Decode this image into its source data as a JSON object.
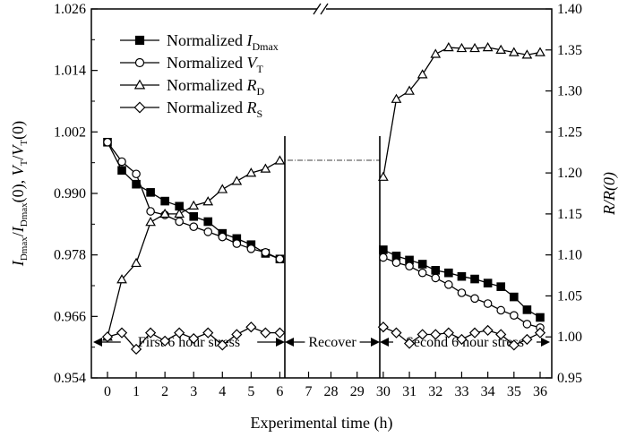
{
  "chart_data": {
    "type": "line",
    "x_label": "Experimental time (h)",
    "x_tick_labels": [
      "0",
      "1",
      "2",
      "3",
      "4",
      "5",
      "6",
      "7",
      "28",
      "29",
      "30",
      "31",
      "32",
      "33",
      "34",
      "35",
      "36"
    ],
    "y_left": {
      "ticks": [
        "0.954",
        "0.966",
        "0.978",
        "0.990",
        "1.002",
        "1.014",
        "1.026"
      ],
      "range": [
        0.954,
        1.026
      ]
    },
    "y_right": {
      "label": "R/R(0)",
      "ticks": [
        "0.95",
        "1.00",
        "1.05",
        "1.10",
        "1.15",
        "1.20",
        "1.25",
        "1.30",
        "1.35",
        "1.40"
      ],
      "range": [
        0.95,
        1.4
      ]
    },
    "regions": [
      {
        "label": "First 6 hour stress"
      },
      {
        "label": "Recover"
      },
      {
        "label": "Second 6 hour stress"
      }
    ],
    "series": [
      {
        "name": "Normalized I_Dmax",
        "legend_main": "Normalized ",
        "legend_var": "I",
        "legend_sub": "Dmax",
        "marker": "square-filled",
        "axis": "left",
        "segments": [
          {
            "x": [
              0,
              0.5,
              1,
              1.5,
              2,
              2.5,
              3,
              3.5,
              4,
              4.5,
              5,
              5.5,
              6
            ],
            "y": [
              1.0,
              0.9945,
              0.9918,
              0.9902,
              0.9885,
              0.9875,
              0.9855,
              0.9845,
              0.9822,
              0.9812,
              0.98,
              0.9783,
              0.9772
            ]
          },
          {
            "x": [
              30,
              30.5,
              31,
              31.5,
              32,
              32.5,
              33,
              33.5,
              34,
              34.5,
              35,
              35.5,
              36
            ],
            "y": [
              0.979,
              0.9778,
              0.977,
              0.9762,
              0.975,
              0.9745,
              0.9738,
              0.9733,
              0.9725,
              0.9718,
              0.9698,
              0.9673,
              0.9658
            ]
          }
        ]
      },
      {
        "name": "Normalized V_T",
        "legend_main": "Normalized ",
        "legend_var": "V",
        "legend_sub": "T",
        "marker": "circle-open",
        "axis": "left",
        "segments": [
          {
            "x": [
              0,
              0.5,
              1,
              1.5,
              2,
              2.5,
              3,
              3.5,
              4,
              4.5,
              5,
              5.5,
              6
            ],
            "y": [
              1.0,
              0.9962,
              0.9938,
              0.9865,
              0.9858,
              0.9845,
              0.9835,
              0.9825,
              0.9815,
              0.9802,
              0.9792,
              0.9785,
              0.9772
            ]
          },
          {
            "x": [
              30,
              30.5,
              31,
              31.5,
              32,
              32.5,
              33,
              33.5,
              34,
              34.5,
              35,
              35.5,
              36
            ],
            "y": [
              0.9775,
              0.9765,
              0.9758,
              0.9745,
              0.9735,
              0.9722,
              0.9706,
              0.9695,
              0.9685,
              0.9672,
              0.9662,
              0.9645,
              0.9638
            ]
          }
        ]
      },
      {
        "name": "Normalized R_D",
        "legend_main": "Normalized ",
        "legend_var": "R",
        "legend_sub": "D",
        "marker": "triangle-open",
        "axis": "right",
        "segments": [
          {
            "x": [
              0,
              0.5,
              1,
              1.5,
              2,
              2.5,
              3,
              3.5,
              4,
              4.5,
              5,
              5.5,
              6
            ],
            "y": [
              1.0,
              1.07,
              1.09,
              1.14,
              1.15,
              1.15,
              1.16,
              1.165,
              1.18,
              1.19,
              1.2,
              1.205,
              1.215
            ]
          },
          {
            "x": [
              30,
              30.5,
              31,
              31.5,
              32,
              32.5,
              33,
              33.5,
              34,
              34.5,
              35,
              35.5,
              36
            ],
            "y": [
              1.195,
              1.29,
              1.3,
              1.32,
              1.345,
              1.353,
              1.352,
              1.352,
              1.353,
              1.35,
              1.347,
              1.344,
              1.347
            ]
          }
        ]
      },
      {
        "name": "Normalized R_S",
        "legend_main": "Normalized ",
        "legend_var": "R",
        "legend_sub": "S",
        "marker": "diamond-open",
        "axis": "right",
        "segments": [
          {
            "x": [
              0,
              0.5,
              1,
              1.5,
              2,
              2.5,
              3,
              3.5,
              4,
              4.5,
              5,
              5.5,
              6
            ],
            "y": [
              1.0,
              1.005,
              0.985,
              1.005,
              0.995,
              1.005,
              0.998,
              1.005,
              0.99,
              1.003,
              1.012,
              1.005,
              1.005
            ]
          },
          {
            "x": [
              30,
              30.5,
              31,
              31.5,
              32,
              32.5,
              33,
              33.5,
              34,
              34.5,
              35,
              35.5,
              36
            ],
            "y": [
              1.012,
              1.005,
              0.992,
              1.003,
              1.003,
              1.005,
              0.997,
              1.005,
              1.008,
              1.003,
              0.99,
              0.997,
              1.005
            ]
          }
        ]
      }
    ]
  }
}
